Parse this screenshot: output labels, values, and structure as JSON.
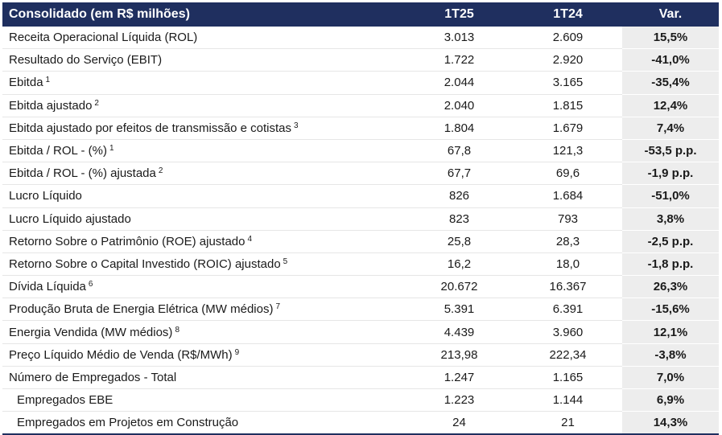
{
  "table": {
    "headers": {
      "label": "Consolidado (em R$ milhões)",
      "c1": "1T25",
      "c2": "1T24",
      "var": "Var."
    },
    "rows": [
      {
        "label": "Receita Operacional Líquida (ROL)",
        "note": "",
        "v1": "3.013",
        "v2": "2.609",
        "var": "15,5%"
      },
      {
        "label": "Resultado do Serviço (EBIT)",
        "note": "",
        "v1": "1.722",
        "v2": "2.920",
        "var": "-41,0%"
      },
      {
        "label": "Ebitda",
        "note": "1",
        "v1": "2.044",
        "v2": "3.165",
        "var": "-35,4%"
      },
      {
        "label": "Ebitda ajustado",
        "note": "2",
        "v1": "2.040",
        "v2": "1.815",
        "var": "12,4%"
      },
      {
        "label": "Ebitda ajustado por efeitos de transmissão e cotistas",
        "note": "3",
        "v1": "1.804",
        "v2": "1.679",
        "var": "7,4%"
      },
      {
        "label": "Ebitda / ROL - (%)",
        "note": "1",
        "v1": "67,8",
        "v2": "121,3",
        "var": "-53,5 p.p."
      },
      {
        "label": "Ebitda / ROL - (%) ajustada",
        "note": "2",
        "v1": "67,7",
        "v2": "69,6",
        "var": "-1,9 p.p."
      },
      {
        "label": "Lucro Líquido",
        "note": "",
        "v1": "826",
        "v2": "1.684",
        "var": "-51,0%"
      },
      {
        "label": "Lucro Líquido ajustado",
        "note": "",
        "v1": "823",
        "v2": "793",
        "var": "3,8%"
      },
      {
        "label": "Retorno Sobre o Patrimônio (ROE) ajustado",
        "note": "4",
        "v1": "25,8",
        "v2": "28,3",
        "var": "-2,5 p.p."
      },
      {
        "label": "Retorno Sobre o Capital Investido (ROIC) ajustado",
        "note": "5",
        "v1": "16,2",
        "v2": "18,0",
        "var": "-1,8 p.p."
      },
      {
        "label": "Dívida Líquida",
        "note": "6",
        "v1": "20.672",
        "v2": "16.367",
        "var": "26,3%"
      },
      {
        "label": "Produção Bruta de Energia Elétrica (MW médios)",
        "note": "7",
        "v1": "5.391",
        "v2": "6.391",
        "var": "-15,6%"
      },
      {
        "label": "Energia Vendida (MW médios)",
        "note": "8",
        "v1": "4.439",
        "v2": "3.960",
        "var": "12,1%"
      },
      {
        "label": "Preço Líquido Médio de Venda (R$/MWh)",
        "note": "9",
        "v1": "213,98",
        "v2": "222,34",
        "var": "-3,8%"
      },
      {
        "label": "Número de Empregados - Total",
        "note": "",
        "v1": "1.247",
        "v2": "1.165",
        "var": "7,0%"
      },
      {
        "label": "Empregados EBE",
        "note": "",
        "v1": "1.223",
        "v2": "1.144",
        "var": "6,9%"
      },
      {
        "label": "Empregados em Projetos em Construção",
        "note": "",
        "v1": "24",
        "v2": "21",
        "var": "14,3%"
      }
    ]
  }
}
